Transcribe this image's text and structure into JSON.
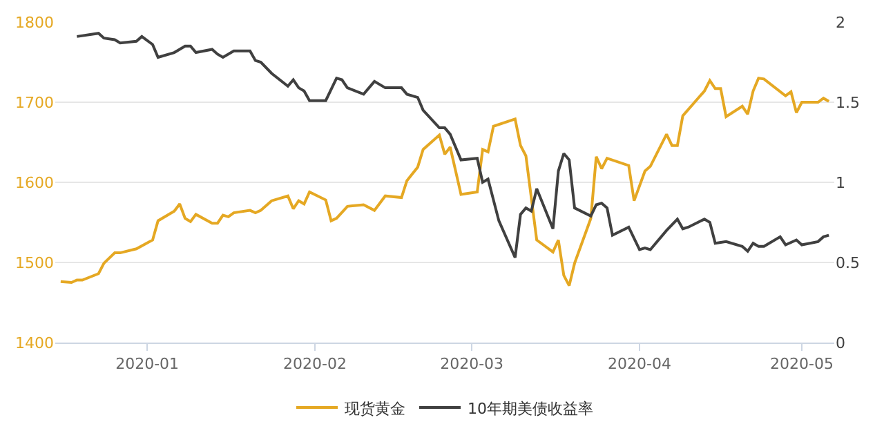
{
  "chart_data": {
    "type": "line",
    "xlim": [
      "2019-12-15",
      "2020-05-07"
    ],
    "xticks": [
      {
        "value": "2020-01-01",
        "label": "2020-01"
      },
      {
        "value": "2020-02-01",
        "label": "2020-02"
      },
      {
        "value": "2020-03-01",
        "label": "2020-03"
      },
      {
        "value": "2020-04-01",
        "label": "2020-04"
      },
      {
        "value": "2020-05-01",
        "label": "2020-05"
      }
    ],
    "ylim": [
      1400,
      1800
    ],
    "yticks": [
      1400,
      1500,
      1600,
      1700,
      1800
    ],
    "y2lim": [
      0,
      2
    ],
    "y2ticks": [
      0,
      0.5,
      1,
      1.5,
      2
    ],
    "grid": "y",
    "legend": "bottom",
    "marker": "none",
    "line_style": "solid",
    "series": [
      {
        "name": "现货黄金",
        "color": "#e5a823",
        "x": [
          "2019-12-16",
          "2019-12-18",
          "2019-12-19",
          "2019-12-20",
          "2019-12-23",
          "2019-12-24",
          "2019-12-26",
          "2019-12-27",
          "2019-12-30",
          "2020-01-02",
          "2020-01-03",
          "2020-01-06",
          "2020-01-07",
          "2020-01-08",
          "2020-01-09",
          "2020-01-10",
          "2020-01-13",
          "2020-01-14",
          "2020-01-15",
          "2020-01-16",
          "2020-01-17",
          "2020-01-20",
          "2020-01-21",
          "2020-01-22",
          "2020-01-24",
          "2020-01-27",
          "2020-01-28",
          "2020-01-29",
          "2020-01-30",
          "2020-01-31",
          "2020-02-03",
          "2020-02-04",
          "2020-02-05",
          "2020-02-07",
          "2020-02-10",
          "2020-02-12",
          "2020-02-14",
          "2020-02-17",
          "2020-02-18",
          "2020-02-20",
          "2020-02-21",
          "2020-02-24",
          "2020-02-25",
          "2020-02-26",
          "2020-02-28",
          "2020-03-02",
          "2020-03-03",
          "2020-03-04",
          "2020-03-05",
          "2020-03-09",
          "2020-03-10",
          "2020-03-11",
          "2020-03-13",
          "2020-03-16",
          "2020-03-17",
          "2020-03-18",
          "2020-03-19",
          "2020-03-20",
          "2020-03-23",
          "2020-03-24",
          "2020-03-25",
          "2020-03-26",
          "2020-03-30",
          "2020-03-31",
          "2020-04-02",
          "2020-04-03",
          "2020-04-06",
          "2020-04-07",
          "2020-04-08",
          "2020-04-09",
          "2020-04-13",
          "2020-04-14",
          "2020-04-15",
          "2020-04-16",
          "2020-04-17",
          "2020-04-20",
          "2020-04-21",
          "2020-04-22",
          "2020-04-23",
          "2020-04-24",
          "2020-04-28",
          "2020-04-29",
          "2020-04-30",
          "2020-05-01",
          "2020-05-04",
          "2020-05-05",
          "2020-05-06"
        ],
        "values": [
          1476,
          1475,
          1478,
          1478,
          1486,
          1499,
          1512,
          1512,
          1517,
          1528,
          1552,
          1564,
          1573,
          1555,
          1551,
          1560,
          1549,
          1549,
          1559,
          1557,
          1562,
          1565,
          1562,
          1565,
          1577,
          1583,
          1567,
          1577,
          1573,
          1588,
          1578,
          1552,
          1555,
          1570,
          1572,
          1565,
          1583,
          1581,
          1602,
          1619,
          1641,
          1659,
          1635,
          1644,
          1585,
          1588,
          1641,
          1638,
          1670,
          1679,
          1646,
          1633,
          1528,
          1513,
          1528,
          1484,
          1471,
          1499,
          1555,
          1632,
          1617,
          1630,
          1621,
          1577,
          1614,
          1620,
          1660,
          1646,
          1646,
          1683,
          1714,
          1727,
          1717,
          1717,
          1682,
          1695,
          1685,
          1714,
          1730,
          1729,
          1708,
          1713,
          1687,
          1700,
          1700,
          1705,
          1701
        ]
      },
      {
        "name": "10年期美债收益率",
        "color": "#404040",
        "axis": "y2",
        "x": [
          "2019-12-19",
          "2019-12-23",
          "2019-12-24",
          "2019-12-26",
          "2019-12-27",
          "2019-12-30",
          "2019-12-31",
          "2020-01-02",
          "2020-01-03",
          "2020-01-06",
          "2020-01-08",
          "2020-01-09",
          "2020-01-10",
          "2020-01-13",
          "2020-01-14",
          "2020-01-15",
          "2020-01-17",
          "2020-01-20",
          "2020-01-21",
          "2020-01-22",
          "2020-01-24",
          "2020-01-27",
          "2020-01-28",
          "2020-01-29",
          "2020-01-30",
          "2020-01-31",
          "2020-02-03",
          "2020-02-05",
          "2020-02-06",
          "2020-02-07",
          "2020-02-10",
          "2020-02-12",
          "2020-02-14",
          "2020-02-17",
          "2020-02-18",
          "2020-02-20",
          "2020-02-21",
          "2020-02-24",
          "2020-02-25",
          "2020-02-26",
          "2020-02-28",
          "2020-03-02",
          "2020-03-03",
          "2020-03-04",
          "2020-03-06",
          "2020-03-09",
          "2020-03-10",
          "2020-03-11",
          "2020-03-12",
          "2020-03-13",
          "2020-03-16",
          "2020-03-17",
          "2020-03-18",
          "2020-03-19",
          "2020-03-20",
          "2020-03-23",
          "2020-03-24",
          "2020-03-25",
          "2020-03-26",
          "2020-03-27",
          "2020-03-30",
          "2020-04-01",
          "2020-04-02",
          "2020-04-03",
          "2020-04-06",
          "2020-04-08",
          "2020-04-09",
          "2020-04-10",
          "2020-04-13",
          "2020-04-14",
          "2020-04-15",
          "2020-04-17",
          "2020-04-20",
          "2020-04-21",
          "2020-04-22",
          "2020-04-23",
          "2020-04-24",
          "2020-04-27",
          "2020-04-28",
          "2020-04-30",
          "2020-05-01",
          "2020-05-04",
          "2020-05-05",
          "2020-05-06"
        ],
        "values": [
          1.91,
          1.93,
          1.9,
          1.89,
          1.87,
          1.88,
          1.91,
          1.86,
          1.78,
          1.81,
          1.85,
          1.85,
          1.81,
          1.83,
          1.8,
          1.78,
          1.82,
          1.82,
          1.76,
          1.75,
          1.68,
          1.6,
          1.64,
          1.59,
          1.57,
          1.51,
          1.51,
          1.65,
          1.64,
          1.59,
          1.55,
          1.63,
          1.59,
          1.59,
          1.55,
          1.53,
          1.45,
          1.34,
          1.34,
          1.3,
          1.14,
          1.15,
          1.0,
          1.02,
          0.76,
          0.53,
          0.8,
          0.84,
          0.82,
          0.96,
          0.71,
          1.07,
          1.18,
          1.14,
          0.84,
          0.79,
          0.86,
          0.87,
          0.84,
          0.67,
          0.72,
          0.58,
          0.59,
          0.58,
          0.7,
          0.77,
          0.71,
          0.72,
          0.77,
          0.75,
          0.62,
          0.63,
          0.6,
          0.57,
          0.62,
          0.6,
          0.6,
          0.66,
          0.61,
          0.64,
          0.61,
          0.63,
          0.66,
          0.67
        ]
      }
    ]
  }
}
